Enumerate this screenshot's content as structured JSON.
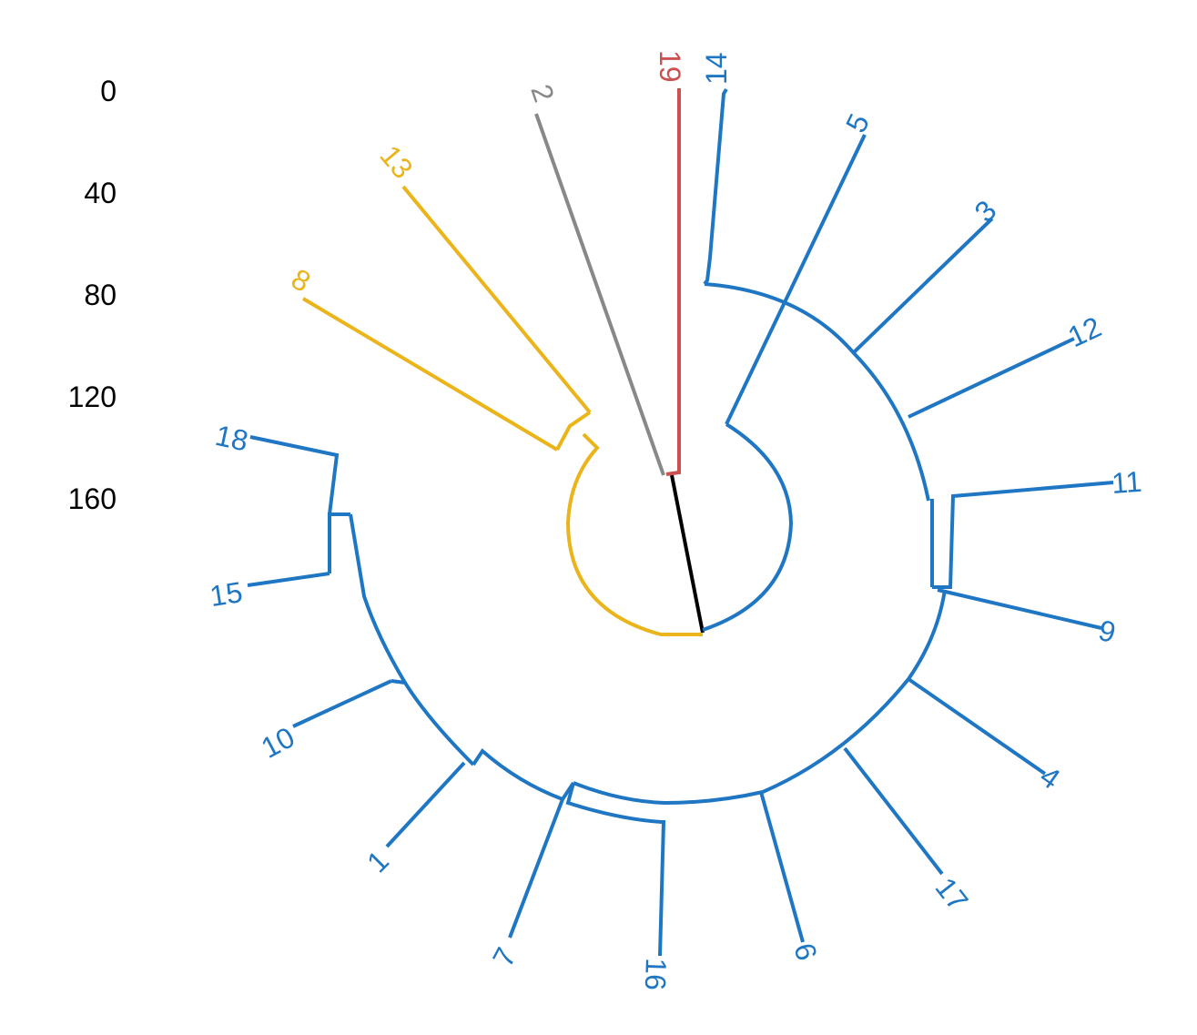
{
  "axis": {
    "ticks": [
      "0",
      "40",
      "80",
      "120",
      "160"
    ]
  },
  "colors": {
    "blue": "#1f77c4",
    "yellow": "#eab41a",
    "gray": "#888888",
    "red": "#cc5050",
    "black": "#000000"
  },
  "leaves": [
    {
      "id": "19",
      "color": "red"
    },
    {
      "id": "14",
      "color": "blue"
    },
    {
      "id": "5",
      "color": "blue"
    },
    {
      "id": "3",
      "color": "blue"
    },
    {
      "id": "12",
      "color": "blue"
    },
    {
      "id": "11",
      "color": "blue"
    },
    {
      "id": "9",
      "color": "blue"
    },
    {
      "id": "4",
      "color": "blue"
    },
    {
      "id": "17",
      "color": "blue"
    },
    {
      "id": "6",
      "color": "blue"
    },
    {
      "id": "16",
      "color": "blue"
    },
    {
      "id": "7",
      "color": "blue"
    },
    {
      "id": "1",
      "color": "blue"
    },
    {
      "id": "10",
      "color": "blue"
    },
    {
      "id": "15",
      "color": "blue"
    },
    {
      "id": "18",
      "color": "blue"
    },
    {
      "id": "8",
      "color": "yellow"
    },
    {
      "id": "13",
      "color": "yellow"
    },
    {
      "id": "2",
      "color": "gray"
    }
  ]
}
